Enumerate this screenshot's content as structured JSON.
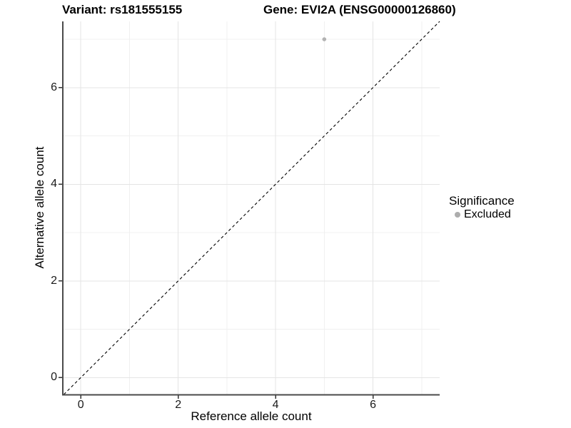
{
  "chart_data": {
    "type": "scatter",
    "title_left": "Variant: rs181555155",
    "title_right": "Gene: EVI2A (ENSG00000126860)",
    "xlabel": "Reference allele count",
    "ylabel": "Alternative allele count",
    "xlim": [
      -0.37,
      7.37
    ],
    "ylim": [
      -0.35,
      7.37
    ],
    "x_major_ticks": [
      0,
      2,
      4,
      6
    ],
    "y_major_ticks": [
      0,
      2,
      4,
      6
    ],
    "x_minor_ticks": [
      1,
      3,
      5,
      7
    ],
    "y_minor_ticks": [
      1,
      3,
      5,
      7
    ],
    "grid": "major+minor",
    "points": [
      {
        "x": 5,
        "y": 7,
        "series": "Excluded"
      }
    ],
    "reference_line": {
      "kind": "identity",
      "slope": 1,
      "intercept": 0,
      "style": "dashed",
      "color": "#000000"
    },
    "legend": {
      "title": "Significance",
      "position": "right-center",
      "entries": [
        {
          "label": "Excluded",
          "color": "#adadad"
        }
      ]
    },
    "colors": {
      "point": "#b2b2b2",
      "grid_major": "#e4e4e4",
      "grid_minor": "#f0f0f0",
      "axis_line": "#4a4a4a",
      "tick_mark": "#333333",
      "text": "#1a1a1a",
      "background": "#ffffff"
    }
  }
}
